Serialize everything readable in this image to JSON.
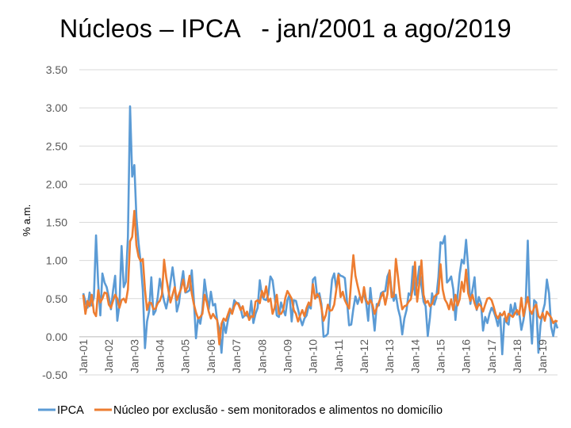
{
  "chart_data": {
    "type": "line",
    "title": "Núcleos – IPCA   - jan/2001 a ago/2019",
    "ylabel": "% a.m.",
    "xlabel": "",
    "ylim": [
      -0.5,
      3.5
    ],
    "yticks": [
      "3.50",
      "3.00",
      "2.50",
      "2.00",
      "1.50",
      "1.00",
      "0.50",
      "0.00",
      "-0.50"
    ],
    "ytick_values": [
      3.5,
      3.0,
      2.5,
      2.0,
      1.5,
      1.0,
      0.5,
      0.0,
      -0.5
    ],
    "xtick_labels": [
      "Jan-01",
      "Jan-02",
      "Jan-03",
      "Jan-04",
      "Jan-05",
      "Jan-06",
      "Jan-07",
      "Jan-08",
      "Jan-09",
      "Jan-10",
      "Jan-11",
      "Jan-12",
      "Jan-13",
      "Jan-14",
      "Jan-15",
      "Jan-16",
      "Jan-17",
      "Jan-18",
      "Jan-19"
    ],
    "x_start": "Jan-01",
    "x_end": "Aug-19",
    "grid": true,
    "legend_position": "bottom",
    "series": [
      {
        "name": "IPCA",
        "color": "#5B9BD5",
        "values": [
          0.57,
          0.46,
          0.38,
          0.58,
          0.41,
          0.52,
          1.33,
          0.7,
          0.28,
          0.83,
          0.71,
          0.65,
          0.52,
          0.36,
          0.6,
          0.8,
          0.21,
          0.42,
          1.19,
          0.65,
          0.72,
          1.31,
          3.02,
          2.1,
          2.25,
          1.57,
          1.23,
          0.97,
          0.61,
          -0.15,
          0.2,
          0.34,
          0.78,
          0.29,
          0.34,
          0.52,
          0.76,
          0.61,
          0.47,
          0.37,
          0.51,
          0.71,
          0.91,
          0.69,
          0.33,
          0.44,
          0.69,
          0.86,
          0.58,
          0.59,
          0.61,
          0.87,
          0.49,
          -0.02,
          0.25,
          0.17,
          0.35,
          0.75,
          0.55,
          0.36,
          0.59,
          0.41,
          0.43,
          0.21,
          0.1,
          -0.21,
          0.19,
          0.05,
          0.21,
          0.33,
          0.31,
          0.48,
          0.44,
          0.44,
          0.37,
          0.25,
          0.28,
          0.28,
          0.24,
          0.47,
          0.18,
          0.3,
          0.38,
          0.74,
          0.54,
          0.49,
          0.48,
          0.55,
          0.79,
          0.74,
          0.53,
          0.28,
          0.26,
          0.45,
          0.36,
          0.28,
          0.48,
          0.55,
          0.2,
          0.48,
          0.47,
          0.36,
          0.24,
          0.15,
          0.24,
          0.28,
          0.41,
          0.37,
          0.75,
          0.78,
          0.52,
          0.57,
          0.43,
          0.0,
          0.01,
          0.04,
          0.45,
          0.75,
          0.83,
          0.63,
          0.83,
          0.8,
          0.79,
          0.77,
          0.47,
          0.15,
          0.16,
          0.37,
          0.53,
          0.43,
          0.52,
          0.5,
          0.56,
          0.45,
          0.21,
          0.64,
          0.36,
          0.08,
          0.43,
          0.41,
          0.57,
          0.59,
          0.6,
          0.79,
          0.86,
          0.6,
          0.47,
          0.55,
          0.37,
          0.26,
          0.03,
          0.24,
          0.35,
          0.57,
          0.54,
          0.92,
          0.55,
          0.69,
          0.92,
          0.67,
          0.46,
          0.4,
          0.01,
          0.25,
          0.57,
          0.42,
          0.51,
          0.78,
          1.24,
          1.22,
          1.32,
          0.71,
          0.74,
          0.79,
          0.62,
          0.22,
          0.54,
          0.82,
          1.01,
          0.96,
          1.27,
          0.9,
          0.43,
          0.61,
          0.78,
          0.35,
          0.52,
          0.44,
          0.08,
          0.26,
          0.18,
          0.3,
          0.38,
          0.33,
          0.25,
          0.14,
          0.31,
          -0.23,
          0.24,
          0.19,
          0.16,
          0.42,
          0.28,
          0.44,
          0.29,
          0.32,
          0.09,
          0.22,
          0.4,
          1.26,
          0.33,
          -0.09,
          0.48,
          0.45,
          -0.21,
          0.15,
          0.32,
          0.43,
          0.75,
          0.57,
          0.13,
          0.01,
          0.19,
          0.11
        ]
      },
      {
        "name": "Núcleo por exclusão - sem monitorados e alimentos no domicílio",
        "color": "#ED7D31",
        "values": [
          0.55,
          0.3,
          0.47,
          0.4,
          0.55,
          0.32,
          0.27,
          0.61,
          0.45,
          0.5,
          0.58,
          0.57,
          0.42,
          0.38,
          0.47,
          0.55,
          0.5,
          0.38,
          0.48,
          0.5,
          0.45,
          0.62,
          1.25,
          1.31,
          1.65,
          1.2,
          1.05,
          0.99,
          1.02,
          0.62,
          0.35,
          0.45,
          0.44,
          0.36,
          0.37,
          0.44,
          0.47,
          0.55,
          1.01,
          0.78,
          0.61,
          0.45,
          0.55,
          0.65,
          0.48,
          0.56,
          0.63,
          0.75,
          0.59,
          0.65,
          0.8,
          0.57,
          0.43,
          0.32,
          0.24,
          0.26,
          0.3,
          0.55,
          0.46,
          0.33,
          0.24,
          0.3,
          0.25,
          0.22,
          -0.1,
          0.17,
          0.24,
          0.21,
          0.29,
          0.37,
          0.3,
          0.4,
          0.45,
          0.42,
          0.35,
          0.4,
          0.28,
          0.33,
          0.22,
          0.27,
          0.26,
          0.46,
          0.48,
          0.44,
          0.6,
          0.52,
          0.66,
          0.46,
          0.5,
          0.3,
          0.38,
          0.55,
          0.3,
          0.3,
          0.35,
          0.51,
          0.6,
          0.55,
          0.5,
          0.35,
          0.3,
          0.2,
          0.28,
          0.35,
          0.27,
          0.38,
          0.45,
          0.41,
          0.69,
          0.5,
          0.56,
          0.52,
          0.38,
          0.21,
          0.28,
          0.42,
          0.34,
          0.35,
          0.42,
          0.62,
          0.81,
          0.52,
          0.59,
          0.48,
          0.42,
          0.37,
          0.74,
          1.07,
          0.8,
          0.67,
          0.55,
          0.45,
          0.65,
          0.48,
          0.43,
          0.48,
          0.42,
          0.3,
          0.38,
          0.45,
          0.52,
          0.58,
          0.42,
          0.56,
          0.87,
          0.52,
          0.53,
          1.02,
          0.78,
          0.52,
          0.36,
          0.4,
          0.41,
          0.46,
          0.49,
          0.65,
          0.98,
          0.46,
          0.69,
          1.0,
          0.55,
          0.44,
          0.47,
          0.4,
          0.43,
          0.52,
          0.55,
          0.57,
          0.95,
          0.62,
          0.49,
          0.44,
          0.36,
          0.49,
          0.35,
          0.55,
          0.41,
          0.49,
          0.72,
          0.59,
          0.88,
          0.57,
          0.47,
          0.55,
          0.44,
          0.36,
          0.43,
          0.4,
          0.33,
          0.42,
          0.5,
          0.51,
          0.48,
          0.39,
          0.29,
          0.24,
          0.3,
          0.28,
          0.33,
          0.2,
          0.3,
          0.28,
          0.26,
          0.31,
          0.35,
          0.29,
          0.51,
          0.27,
          0.41,
          0.52,
          0.35,
          0.3,
          0.38,
          0.42,
          0.27,
          0.24,
          0.31,
          0.21,
          0.33,
          0.29,
          0.25,
          0.18,
          0.21,
          0.2
        ]
      }
    ]
  }
}
